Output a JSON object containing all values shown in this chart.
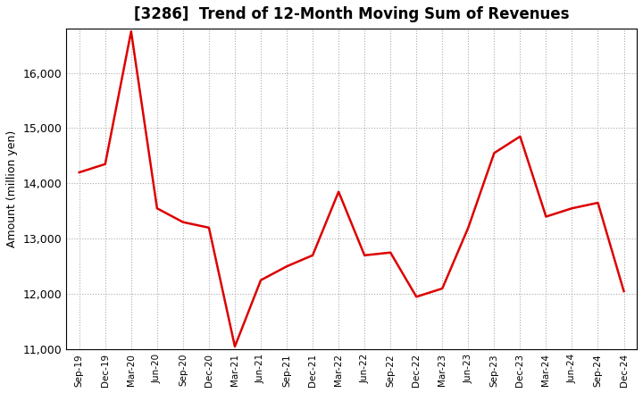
{
  "title": "[3286]  Trend of 12-Month Moving Sum of Revenues",
  "ylabel": "Amount (million yen)",
  "line_color": "#DD0000",
  "line_width": 1.8,
  "background_color": "#ffffff",
  "grid_color": "#aaaaaa",
  "ylim": [
    11000,
    16800
  ],
  "yticks": [
    11000,
    12000,
    13000,
    14000,
    15000,
    16000
  ],
  "x_labels": [
    "Sep-19",
    "Dec-19",
    "Mar-20",
    "Jun-20",
    "Sep-20",
    "Dec-20",
    "Mar-21",
    "Jun-21",
    "Sep-21",
    "Dec-21",
    "Mar-22",
    "Jun-22",
    "Sep-22",
    "Dec-22",
    "Mar-23",
    "Jun-23",
    "Sep-23",
    "Dec-23",
    "Mar-24",
    "Jun-24",
    "Sep-24",
    "Dec-24"
  ],
  "values": [
    14200,
    14350,
    16750,
    13550,
    13300,
    13200,
    11050,
    12250,
    12500,
    12700,
    13850,
    12700,
    12750,
    11950,
    12100,
    13200,
    14550,
    14850,
    13400,
    13550,
    13650,
    12050
  ],
  "title_fontsize": 12,
  "ylabel_fontsize": 9,
  "tick_fontsize": 9,
  "xtick_fontsize": 7.5
}
